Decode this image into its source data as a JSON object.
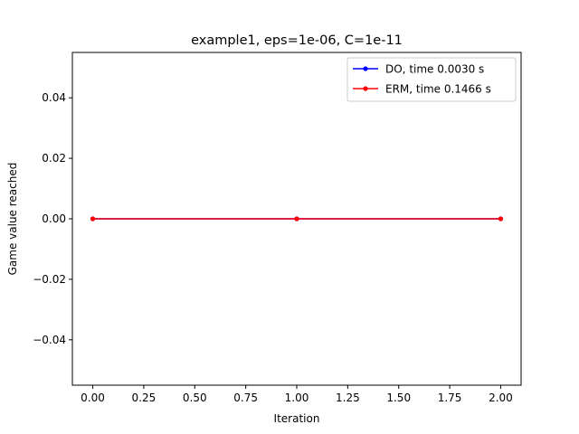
{
  "chart_data": {
    "type": "line",
    "title": "example1, eps=1e-06, C=1e-11",
    "xlabel": "Iteration",
    "ylabel": "Game value reached",
    "xlim": [
      -0.1,
      2.1
    ],
    "ylim": [
      -0.055,
      0.055
    ],
    "xticks": [
      0.0,
      0.25,
      0.5,
      0.75,
      1.0,
      1.25,
      1.5,
      1.75,
      2.0
    ],
    "xtick_labels": [
      "0.00",
      "0.25",
      "0.50",
      "0.75",
      "1.00",
      "1.25",
      "1.50",
      "1.75",
      "2.00"
    ],
    "yticks": [
      -0.04,
      -0.02,
      0.0,
      0.02,
      0.04
    ],
    "ytick_labels": [
      "−0.04",
      "−0.02",
      "0.00",
      "0.02",
      "0.04"
    ],
    "grid": false,
    "legend_position": "top-right",
    "x": [
      0,
      1,
      2
    ],
    "series": [
      {
        "name": "DO, time 0.0030 s",
        "color": "#0000ff",
        "marker": "point",
        "values": [
          0,
          0,
          0
        ]
      },
      {
        "name": "ERM, time 0.1466 s",
        "color": "#ff0000",
        "marker": "point",
        "values": [
          0,
          0,
          0
        ]
      }
    ]
  }
}
